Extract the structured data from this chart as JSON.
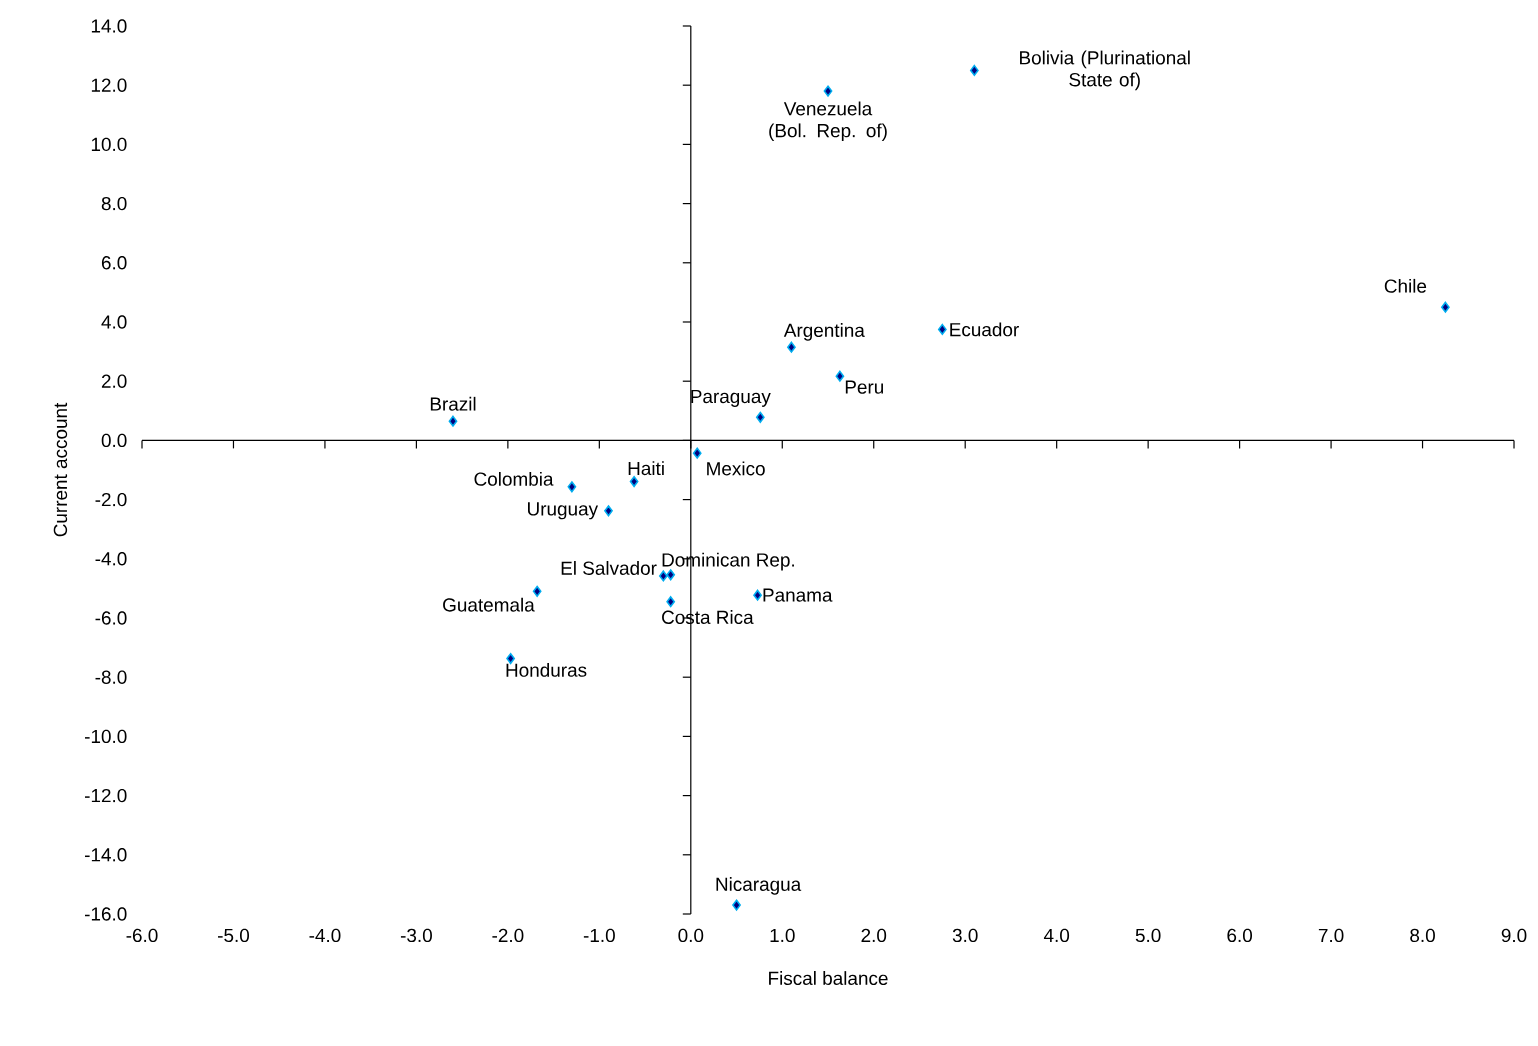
{
  "chart_data": {
    "type": "scatter",
    "xlabel": "Fiscal balance",
    "ylabel": "Current account",
    "marker": "diamond",
    "color": "#000080",
    "x": [
      3.1,
      1.5,
      8.25,
      2.75,
      1.1,
      1.63,
      0.76,
      0.07,
      -2.6,
      -0.62,
      -1.3,
      -0.9,
      -0.3,
      -0.22,
      0.73,
      -1.68,
      -0.22,
      -1.97,
      0.5
    ],
    "values": [
      12.5,
      11.8,
      4.5,
      3.75,
      3.15,
      2.17,
      0.78,
      -0.43,
      0.65,
      -1.39,
      -1.57,
      -2.38,
      -4.58,
      -4.54,
      -5.23,
      -5.1,
      -5.45,
      -7.37,
      -15.7
    ],
    "annotations": [
      {
        "text": "Bolivia (Plurinational State of)",
        "x": 3.1,
        "y": 12.5
      },
      {
        "text": "Venezuela (Bol. Rep. of)",
        "x": 1.5,
        "y": 11.8
      },
      {
        "text": "Chile",
        "x": 8.25,
        "y": 4.5
      },
      {
        "text": "Ecuador",
        "x": 2.75,
        "y": 3.75
      },
      {
        "text": "Argentina",
        "x": 1.1,
        "y": 3.15
      },
      {
        "text": "Peru",
        "x": 1.63,
        "y": 2.17
      },
      {
        "text": "Paraguay",
        "x": 0.76,
        "y": 0.78
      },
      {
        "text": "Mexico",
        "x": 0.07,
        "y": -0.43
      },
      {
        "text": "Brazil",
        "x": -2.6,
        "y": 0.65
      },
      {
        "text": "Haiti",
        "x": -0.62,
        "y": -1.39
      },
      {
        "text": "Colombia",
        "x": -1.3,
        "y": -1.57
      },
      {
        "text": "Uruguay",
        "x": -0.9,
        "y": -2.38
      },
      {
        "text": "El Salvador",
        "x": -0.3,
        "y": -4.58
      },
      {
        "text": "Dominican Rep.",
        "x": -0.22,
        "y": -4.54
      },
      {
        "text": "Panama",
        "x": 0.73,
        "y": -5.23
      },
      {
        "text": "Guatemala",
        "x": -1.68,
        "y": -5.1
      },
      {
        "text": "Costa Rica",
        "x": -0.22,
        "y": -5.45
      },
      {
        "text": "Honduras",
        "x": -1.97,
        "y": -7.37
      },
      {
        "text": "Nicaragua",
        "x": 0.5,
        "y": -15.7
      }
    ],
    "xlim": [
      -6,
      9
    ],
    "xticks": [
      {
        "value": -6,
        "label": "-6.0"
      },
      {
        "value": -5,
        "label": "-5.0"
      },
      {
        "value": -4,
        "label": "-4.0"
      },
      {
        "value": -3,
        "label": "-3.0"
      },
      {
        "value": -2,
        "label": "-2.0"
      },
      {
        "value": -1,
        "label": "-1.0"
      },
      {
        "value": 0,
        "label": "0.0"
      },
      {
        "value": 1,
        "label": "1.0"
      },
      {
        "value": 2,
        "label": "2.0"
      },
      {
        "value": 3,
        "label": "3.0"
      },
      {
        "value": 4,
        "label": "4.0"
      },
      {
        "value": 5,
        "label": "5.0"
      },
      {
        "value": 6,
        "label": "6.0"
      },
      {
        "value": 7,
        "label": "7.0"
      },
      {
        "value": 8,
        "label": "8.0"
      },
      {
        "value": 9,
        "label": "9.0"
      }
    ],
    "ylim": [
      -16,
      14
    ],
    "yticks": [
      {
        "value": -16,
        "label": "-16.0"
      },
      {
        "value": -14,
        "label": "-14.0"
      },
      {
        "value": -12,
        "label": "-12.0"
      },
      {
        "value": -10,
        "label": "-10.0"
      },
      {
        "value": -8,
        "label": "-8.0"
      },
      {
        "value": -6,
        "label": "-6.0"
      },
      {
        "value": -4,
        "label": "-4.0"
      },
      {
        "value": -2,
        "label": "-2.0"
      },
      {
        "value": 0,
        "label": "0.0"
      },
      {
        "value": 2,
        "label": "2.0"
      },
      {
        "value": 4,
        "label": "4.0"
      },
      {
        "value": 6,
        "label": "6.0"
      },
      {
        "value": 8,
        "label": "8.0"
      },
      {
        "value": 10,
        "label": "10.0"
      },
      {
        "value": 12,
        "label": "12.0"
      },
      {
        "value": 14,
        "label": "14.0"
      }
    ]
  }
}
